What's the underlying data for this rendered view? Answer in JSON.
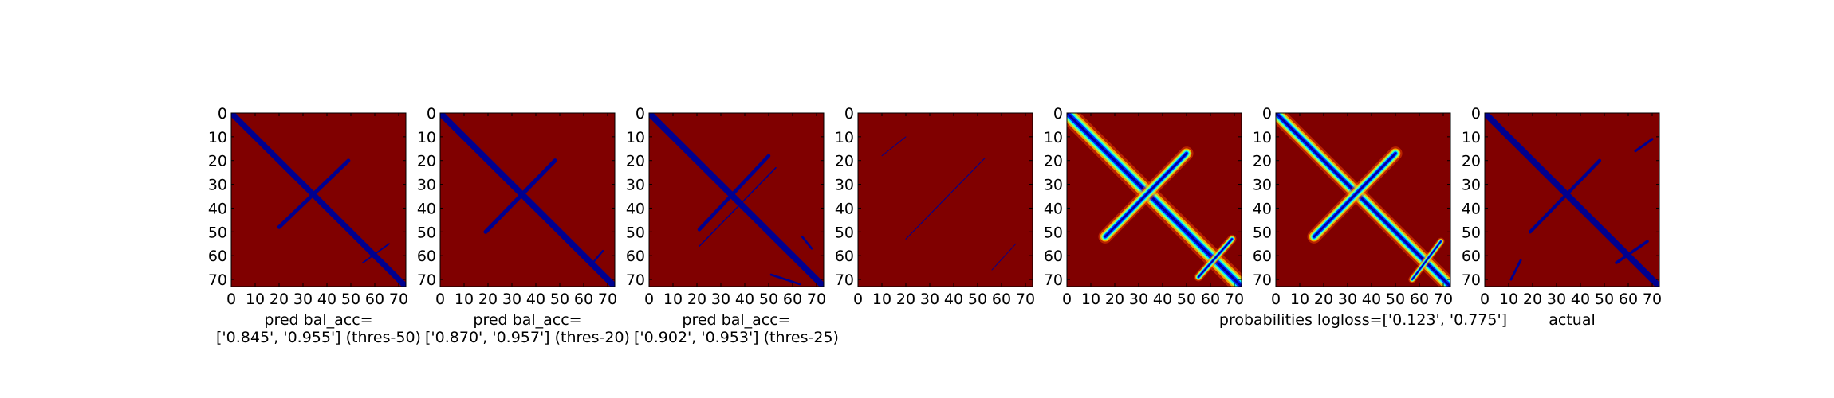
{
  "colors": {
    "background_red": "#800000",
    "mark_blue": "#00008f",
    "frame": "#000000",
    "page": "#ffffff"
  },
  "chart_data": [
    {
      "type": "heatmap",
      "variant": "binary",
      "xlabel_lines": [
        "pred bal_acc=",
        "['0.845', '0.955'] (thres-50)"
      ],
      "xticks": [
        0,
        10,
        20,
        30,
        40,
        50,
        60,
        70
      ],
      "yticks": [
        0,
        10,
        20,
        30,
        40,
        50,
        60,
        70
      ],
      "xlim": [
        0,
        73
      ],
      "ylim": [
        73,
        0
      ],
      "blobs": [
        {
          "x1": 0,
          "y1": 0,
          "x2": 73,
          "y2": 73,
          "width": 2.4
        },
        {
          "x1": 20,
          "y1": 48,
          "x2": 49,
          "y2": 20,
          "width": 1.6
        },
        {
          "x1": 55,
          "y1": 63,
          "x2": 66,
          "y2": 55,
          "width": 0.6
        }
      ]
    },
    {
      "type": "heatmap",
      "variant": "binary",
      "xlabel_lines": [
        "pred bal_acc=",
        "['0.870', '0.957'] (thres-20)"
      ],
      "xticks": [
        0,
        10,
        20,
        30,
        40,
        50,
        60,
        70
      ],
      "yticks": [
        0,
        10,
        20,
        30,
        40,
        50,
        60,
        70
      ],
      "xlim": [
        0,
        73
      ],
      "ylim": [
        73,
        0
      ],
      "blobs": [
        {
          "x1": 0,
          "y1": 0,
          "x2": 73,
          "y2": 73,
          "width": 2.6
        },
        {
          "x1": 19,
          "y1": 50,
          "x2": 48,
          "y2": 20,
          "width": 1.7
        },
        {
          "x1": 63,
          "y1": 64,
          "x2": 68,
          "y2": 58,
          "width": 0.8
        }
      ]
    },
    {
      "type": "heatmap",
      "variant": "binary",
      "xlabel_lines": [
        "pred bal_acc=",
        "['0.902', '0.953'] (thres-25)"
      ],
      "xticks": [
        0,
        10,
        20,
        30,
        40,
        50,
        60,
        70
      ],
      "yticks": [
        0,
        10,
        20,
        30,
        40,
        50,
        60,
        70
      ],
      "xlim": [
        0,
        73
      ],
      "ylim": [
        73,
        0
      ],
      "blobs": [
        {
          "x1": 0,
          "y1": 0,
          "x2": 73,
          "y2": 73,
          "width": 2.6
        },
        {
          "x1": 21,
          "y1": 49,
          "x2": 50,
          "y2": 18,
          "width": 1.5
        },
        {
          "x1": 21,
          "y1": 56,
          "x2": 53,
          "y2": 23,
          "width": 0.5
        },
        {
          "x1": 64,
          "y1": 52,
          "x2": 68,
          "y2": 57,
          "width": 0.9
        },
        {
          "x1": 51,
          "y1": 68,
          "x2": 63,
          "y2": 72,
          "width": 0.9
        }
      ]
    },
    {
      "type": "heatmap",
      "variant": "binary",
      "xlabel_lines": [],
      "xticks": [
        0,
        10,
        20,
        30,
        40,
        50,
        60,
        70
      ],
      "yticks": [
        0,
        10,
        20,
        30,
        40,
        50,
        60,
        70
      ],
      "xlim": [
        0,
        73
      ],
      "ylim": [
        73,
        0
      ],
      "blobs": [
        {
          "x1": 20,
          "y1": 53,
          "x2": 53,
          "y2": 19,
          "width": 0.35
        },
        {
          "x1": 10,
          "y1": 18,
          "x2": 20,
          "y2": 10,
          "width": 0.3
        },
        {
          "x1": 56,
          "y1": 66,
          "x2": 66,
          "y2": 55,
          "width": 0.3
        }
      ]
    },
    {
      "type": "heatmap",
      "variant": "probability",
      "xlabel_lines": [],
      "xticks": [
        0,
        10,
        20,
        30,
        40,
        50,
        60,
        70
      ],
      "yticks": [
        0,
        10,
        20,
        30,
        40,
        50,
        60,
        70
      ],
      "xlim": [
        0,
        73
      ],
      "ylim": [
        73,
        0
      ],
      "blobs": [
        {
          "x1": 0,
          "y1": 0,
          "x2": 73,
          "y2": 73,
          "width": 3.0
        },
        {
          "x1": 16,
          "y1": 52,
          "x2": 50,
          "y2": 17,
          "width": 2.2
        },
        {
          "x1": 55,
          "y1": 69,
          "x2": 69,
          "y2": 53,
          "width": 1.4
        }
      ]
    },
    {
      "type": "heatmap",
      "variant": "probability",
      "xlabel_lines": [
        "probabilities logloss=['0.123', '0.775']"
      ],
      "xticks": [
        0,
        10,
        20,
        30,
        40,
        50,
        60,
        70
      ],
      "yticks": [
        0,
        10,
        20,
        30,
        40,
        50,
        60,
        70
      ],
      "xlim": [
        0,
        73
      ],
      "ylim": [
        73,
        0
      ],
      "blobs": [
        {
          "x1": 0,
          "y1": 0,
          "x2": 73,
          "y2": 73,
          "width": 2.6
        },
        {
          "x1": 16,
          "y1": 52,
          "x2": 50,
          "y2": 17,
          "width": 2.2
        },
        {
          "x1": 57,
          "y1": 70,
          "x2": 69,
          "y2": 54,
          "width": 1.2
        }
      ]
    },
    {
      "type": "heatmap",
      "variant": "binary",
      "xlabel_lines": [
        "actual"
      ],
      "xticks": [
        0,
        10,
        20,
        30,
        40,
        50,
        60,
        70
      ],
      "yticks": [
        0,
        10,
        20,
        30,
        40,
        50,
        60,
        70
      ],
      "xlim": [
        0,
        73
      ],
      "ylim": [
        73,
        0
      ],
      "blobs": [
        {
          "x1": 0,
          "y1": 0,
          "x2": 73,
          "y2": 73,
          "width": 2.6
        },
        {
          "x1": 19,
          "y1": 50,
          "x2": 48,
          "y2": 20,
          "width": 1.4
        },
        {
          "x1": 63,
          "y1": 16,
          "x2": 70,
          "y2": 11,
          "width": 1.0
        },
        {
          "x1": 11,
          "y1": 70,
          "x2": 15,
          "y2": 62,
          "width": 1.0
        },
        {
          "x1": 55,
          "y1": 63,
          "x2": 68,
          "y2": 54,
          "width": 1.2
        }
      ]
    }
  ]
}
